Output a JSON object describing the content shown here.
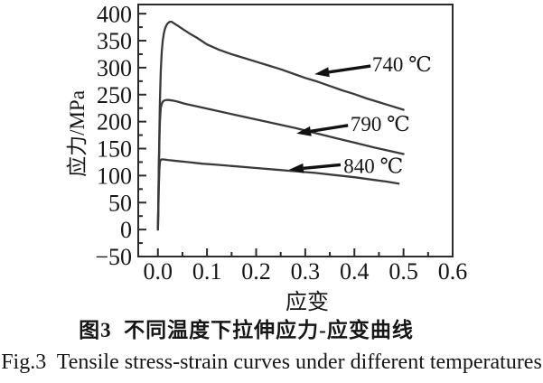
{
  "figure": {
    "caption_zh": "图3  不同温度下拉伸应力-应变曲线",
    "caption_en": "Fig.3  Tensile stress-strain curves under different temperatures"
  },
  "chart_data": {
    "type": "line",
    "title": "",
    "xlabel": "应变",
    "ylabel": "应力/MPa",
    "xlim": [
      -0.04,
      0.6
    ],
    "ylim": [
      -50,
      417
    ],
    "x_ticks": [
      0,
      0.1,
      0.2,
      0.3,
      0.4,
      0.5,
      0.6
    ],
    "x_tick_labels": [
      "0.0",
      "0.1",
      "0.2",
      "0.3",
      "0.4",
      "0.5",
      "0.6"
    ],
    "x_minor_tick_step": 0.05,
    "y_ticks": [
      400,
      350,
      300,
      250,
      200,
      150,
      100,
      50,
      0,
      -50
    ],
    "y_tick_labels": [
      "400",
      "350",
      "300",
      "250",
      "200",
      "150",
      "100",
      "50",
      "0",
      "−50"
    ],
    "y_minor_tick_step": 25,
    "grid": false,
    "legend_position": "inline-arrow-annotations",
    "colors": {
      "curve": "#3a3a3a",
      "frame": "#2b2b2b",
      "text": "#161616",
      "arrow": "#111111",
      "background": "#ffffff"
    },
    "series": [
      {
        "name": "740 ℃",
        "peak_mpa": 385,
        "end_mpa": 222,
        "points": [
          [
            0,
            0
          ],
          [
            0.001,
            60
          ],
          [
            0.002,
            120
          ],
          [
            0.003,
            180
          ],
          [
            0.004,
            230
          ],
          [
            0.005,
            268
          ],
          [
            0.006,
            296
          ],
          [
            0.007,
            316
          ],
          [
            0.008,
            331
          ],
          [
            0.01,
            351
          ],
          [
            0.012,
            363
          ],
          [
            0.014,
            371
          ],
          [
            0.017,
            378
          ],
          [
            0.02,
            382
          ],
          [
            0.024,
            385
          ],
          [
            0.028,
            385
          ],
          [
            0.033,
            382
          ],
          [
            0.04,
            378
          ],
          [
            0.05,
            372
          ],
          [
            0.065,
            363
          ],
          [
            0.08,
            355
          ],
          [
            0.1,
            343
          ],
          [
            0.125,
            333
          ],
          [
            0.15,
            325
          ],
          [
            0.175,
            318
          ],
          [
            0.2,
            311
          ],
          [
            0.225,
            304
          ],
          [
            0.25,
            297
          ],
          [
            0.275,
            289
          ],
          [
            0.3,
            281
          ],
          [
            0.325,
            274
          ],
          [
            0.35,
            266
          ],
          [
            0.375,
            258
          ],
          [
            0.4,
            251
          ],
          [
            0.425,
            243
          ],
          [
            0.45,
            236
          ],
          [
            0.475,
            229
          ],
          [
            0.5,
            222
          ]
        ]
      },
      {
        "name": "790 ℃",
        "peak_mpa": 240,
        "end_mpa": 140,
        "points": [
          [
            0,
            0
          ],
          [
            0.001,
            55
          ],
          [
            0.002,
            110
          ],
          [
            0.003,
            160
          ],
          [
            0.004,
            196
          ],
          [
            0.005,
            215
          ],
          [
            0.006,
            226
          ],
          [
            0.008,
            233
          ],
          [
            0.01,
            237
          ],
          [
            0.013,
            239
          ],
          [
            0.017,
            240
          ],
          [
            0.022,
            240
          ],
          [
            0.03,
            239
          ],
          [
            0.04,
            237
          ],
          [
            0.055,
            233
          ],
          [
            0.075,
            229
          ],
          [
            0.1,
            224
          ],
          [
            0.13,
            218
          ],
          [
            0.16,
            212
          ],
          [
            0.2,
            204
          ],
          [
            0.24,
            196
          ],
          [
            0.28,
            188
          ],
          [
            0.32,
            179
          ],
          [
            0.36,
            170
          ],
          [
            0.4,
            161
          ],
          [
            0.44,
            152
          ],
          [
            0.47,
            146
          ],
          [
            0.5,
            140
          ]
        ]
      },
      {
        "name": "840 ℃",
        "peak_mpa": 130,
        "end_mpa": 85,
        "points": [
          [
            0,
            0
          ],
          [
            0.001,
            40
          ],
          [
            0.002,
            80
          ],
          [
            0.003,
            110
          ],
          [
            0.004,
            124
          ],
          [
            0.005,
            128
          ],
          [
            0.007,
            130
          ],
          [
            0.012,
            130
          ],
          [
            0.02,
            129
          ],
          [
            0.04,
            127
          ],
          [
            0.06,
            125
          ],
          [
            0.09,
            122
          ],
          [
            0.12,
            120
          ],
          [
            0.16,
            117
          ],
          [
            0.2,
            114
          ],
          [
            0.24,
            111
          ],
          [
            0.28,
            108
          ],
          [
            0.32,
            105
          ],
          [
            0.36,
            101
          ],
          [
            0.4,
            97
          ],
          [
            0.44,
            92
          ],
          [
            0.465,
            89
          ],
          [
            0.49,
            85
          ]
        ]
      }
    ],
    "annotations": [
      {
        "label": "740 ℃",
        "label_pos": [
          0.436,
          307
        ],
        "arrow_tail": [
          0.433,
          303
        ],
        "arrow_head": [
          0.319,
          288
        ]
      },
      {
        "label": "790 ℃",
        "label_pos": [
          0.392,
          196
        ],
        "arrow_tail": [
          0.387,
          193
        ],
        "arrow_head": [
          0.282,
          178
        ]
      },
      {
        "label": "840 ℃",
        "label_pos": [
          0.378,
          118
        ],
        "arrow_tail": [
          0.372,
          120
        ],
        "arrow_head": [
          0.267,
          111
        ]
      }
    ]
  }
}
